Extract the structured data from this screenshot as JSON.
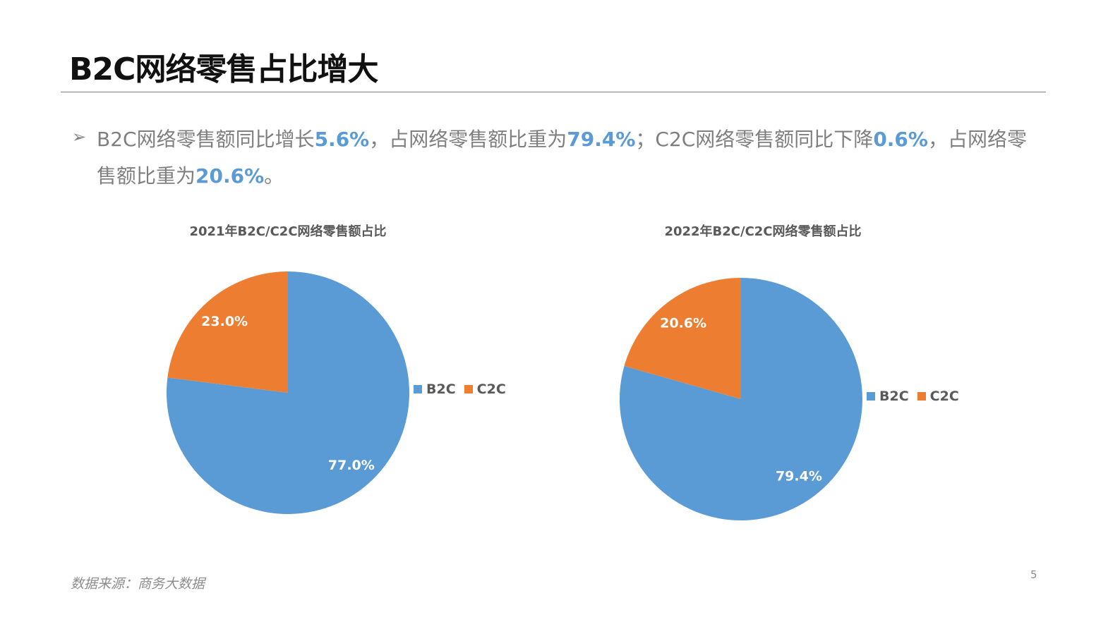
{
  "title": "B2C网络零售占比增大",
  "bullet": {
    "icon": "arrow-bullet-icon",
    "segments": [
      {
        "text": "B2C网络零售额同比增长",
        "highlight": false
      },
      {
        "text": "5.6%",
        "highlight": true
      },
      {
        "text": "，占网络零售额比重为",
        "highlight": false
      },
      {
        "text": "79.4%",
        "highlight": true
      },
      {
        "text": "；C2C网络零售额同比下降",
        "highlight": false
      },
      {
        "text": "0.6%",
        "highlight": true
      },
      {
        "text": "，占网络零售额比重为",
        "highlight": false
      },
      {
        "text": "20.6%",
        "highlight": true
      },
      {
        "text": "。",
        "highlight": false
      }
    ]
  },
  "colors": {
    "B2C": "#5b9bd5",
    "C2C": "#ed7d31",
    "highlight": "#5b9bd5",
    "text": "#7f7f7f"
  },
  "chart_data": [
    {
      "type": "pie",
      "title": "2021年B2C/C2C网络零售额占比",
      "categories": [
        "B2C",
        "C2C"
      ],
      "values": [
        77.0,
        23.0
      ],
      "data_labels": [
        "77.0%",
        "23.0%"
      ],
      "legend": "right"
    },
    {
      "type": "pie",
      "title": "2022年B2C/C2C网络零售额占比",
      "categories": [
        "B2C",
        "C2C"
      ],
      "values": [
        79.4,
        20.6
      ],
      "data_labels": [
        "79.4%",
        "20.6%"
      ],
      "legend": "right"
    }
  ],
  "source": "数据来源：商务大数据",
  "page_number": "5"
}
